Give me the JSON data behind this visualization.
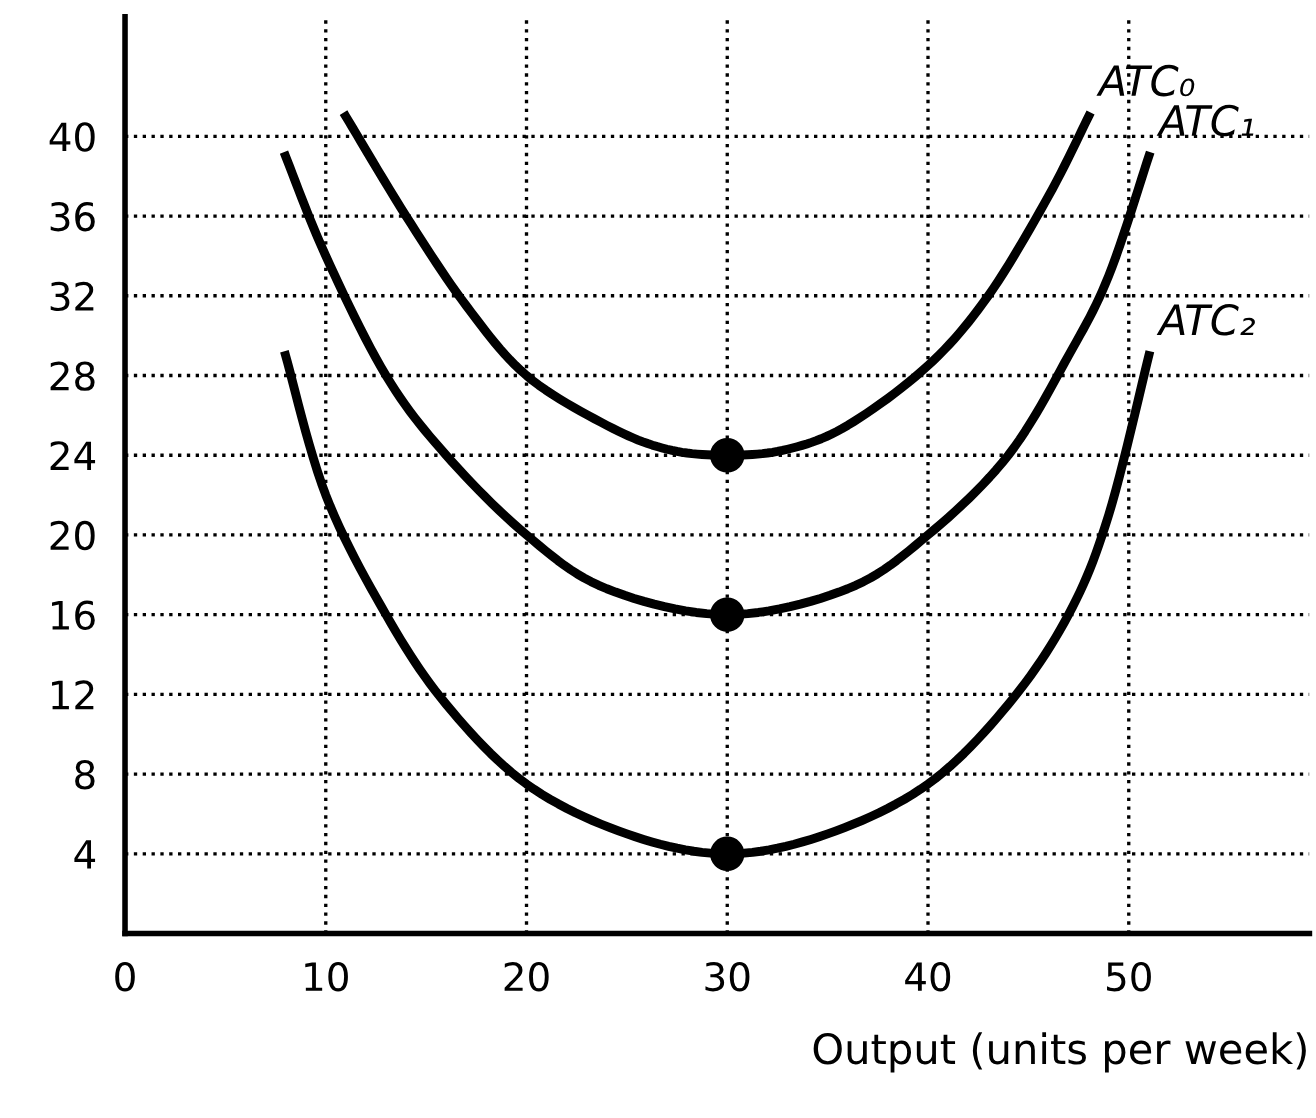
{
  "chart_data": {
    "type": "line",
    "xlabel": "Output (units per week)",
    "series": [
      {
        "name": "ATC₀",
        "color": "#000000",
        "x": [
          11,
          14,
          17,
          20,
          24,
          27,
          30,
          33,
          36,
          40,
          43,
          46,
          48
        ],
        "values": [
          41,
          36,
          31.5,
          28,
          25.5,
          24.3,
          24,
          24.3,
          25.5,
          28.5,
          32,
          37,
          41
        ]
      },
      {
        "name": "ATC₁",
        "color": "#000000",
        "x": [
          8,
          10,
          13,
          16,
          20,
          24,
          30,
          36,
          40,
          44,
          47,
          49,
          51
        ],
        "values": [
          39,
          34,
          28,
          24,
          20,
          17.3,
          16,
          17.3,
          20,
          24,
          29,
          33,
          39
        ]
      },
      {
        "name": "ATC₂",
        "color": "#000000",
        "x": [
          8,
          10,
          13,
          16,
          20,
          25,
          30,
          35,
          40,
          44,
          47,
          49,
          51
        ],
        "values": [
          29,
          22,
          16,
          11.5,
          7.5,
          5,
          4,
          5,
          7.5,
          11.5,
          16,
          21,
          29
        ]
      },
      {
        "type": "scatter",
        "color": "#000000",
        "marker": "circle",
        "x": [
          30,
          30,
          30
        ],
        "values": [
          24,
          16,
          4
        ]
      }
    ],
    "xlim": [
      0,
      59
    ],
    "ylim": [
      0,
      46
    ],
    "xticks": [
      0,
      10,
      20,
      30,
      40,
      50
    ],
    "yticks": [
      4,
      8,
      12,
      16,
      20,
      24,
      28,
      32,
      36,
      40
    ],
    "grid": true,
    "legend": false,
    "marker": "none",
    "line_style": "solid"
  }
}
